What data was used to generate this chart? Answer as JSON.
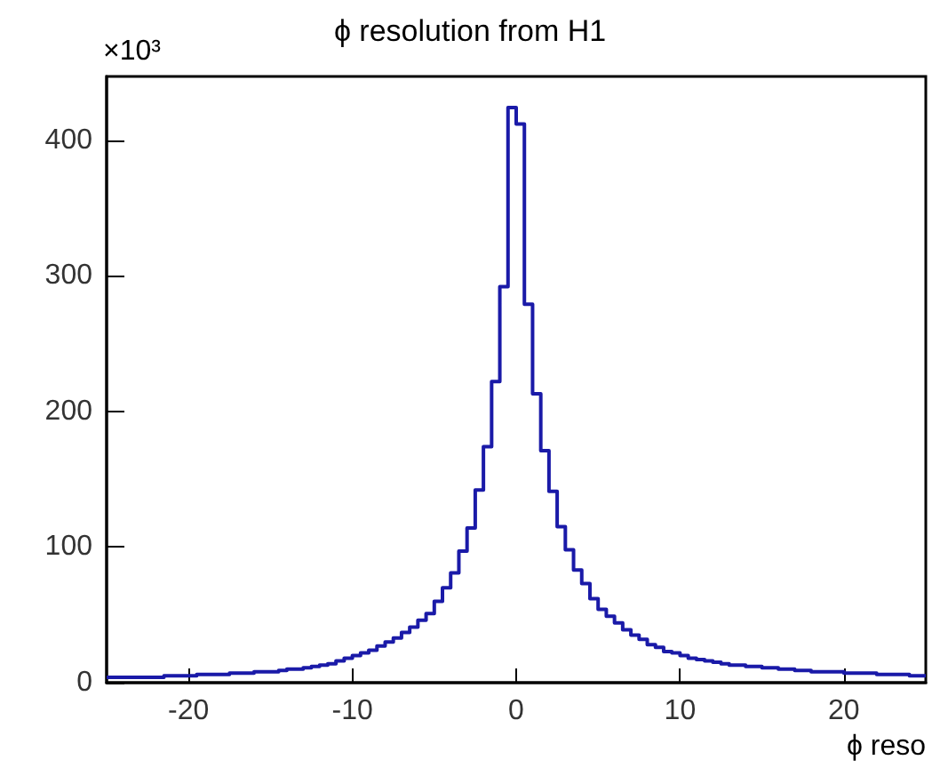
{
  "chart_data": {
    "type": "histogram",
    "title": "ϕ resolution from H1",
    "xlabel": "ϕ reso",
    "annotations": [
      "×10³"
    ],
    "bins": [
      -25,
      -24.5,
      -24,
      -23.5,
      -23,
      -22.5,
      -22,
      -21.5,
      -21,
      -20.5,
      -20,
      -19.5,
      -19,
      -18.5,
      -18,
      -17.5,
      -17,
      -16.5,
      -16,
      -15.5,
      -15,
      -14.5,
      -14,
      -13.5,
      -13,
      -12.5,
      -12,
      -11.5,
      -11,
      -10.5,
      -10,
      -9.5,
      -9,
      -8.5,
      -8,
      -7.5,
      -7,
      -6.5,
      -6,
      -5.5,
      -5,
      -4.5,
      -4,
      -3.5,
      -3,
      -2.5,
      -2,
      -1.5,
      -1,
      -0.5,
      0,
      0.5,
      1,
      1.5,
      2,
      2.5,
      3,
      3.5,
      4,
      4.5,
      5,
      5.5,
      6,
      6.5,
      7,
      7.5,
      8,
      8.5,
      9,
      9.5,
      10,
      10.5,
      11,
      11.5,
      12,
      12.5,
      13,
      13.5,
      14,
      14.5,
      15,
      15.5,
      16,
      16.5,
      17,
      17.5,
      18,
      18.5,
      19,
      19.5,
      20,
      20.5,
      21,
      21.5,
      22,
      22.5,
      23,
      23.5,
      24,
      24.5,
      25
    ],
    "values": [
      4,
      4,
      4,
      4,
      4,
      4,
      4,
      5,
      5,
      5,
      5,
      6,
      6,
      6,
      6,
      7,
      7,
      7,
      8,
      8,
      8,
      9,
      10,
      10,
      11,
      12,
      13,
      14,
      16,
      18,
      20,
      22,
      24,
      27,
      30,
      33,
      37,
      41,
      46,
      51,
      60,
      70,
      81,
      97,
      114,
      142,
      174,
      222,
      292,
      424,
      412,
      279,
      213,
      171,
      141,
      115,
      98,
      83,
      73,
      62,
      54,
      49,
      44,
      39,
      35,
      32,
      28,
      26,
      23,
      22,
      20,
      18,
      17,
      16,
      15,
      14,
      13,
      13,
      12,
      12,
      11,
      11,
      10,
      10,
      9,
      9,
      8,
      8,
      8,
      8,
      7,
      7,
      7,
      7,
      6,
      6,
      6,
      6,
      5,
      5
    ],
    "color": "#1a1aa8",
    "xlim": [
      -25,
      25
    ],
    "xticks": [
      -20,
      -10,
      0,
      10,
      20
    ],
    "ylim": [
      0,
      447
    ],
    "yticks": [
      0,
      100,
      200,
      300,
      400
    ],
    "grid": false
  }
}
